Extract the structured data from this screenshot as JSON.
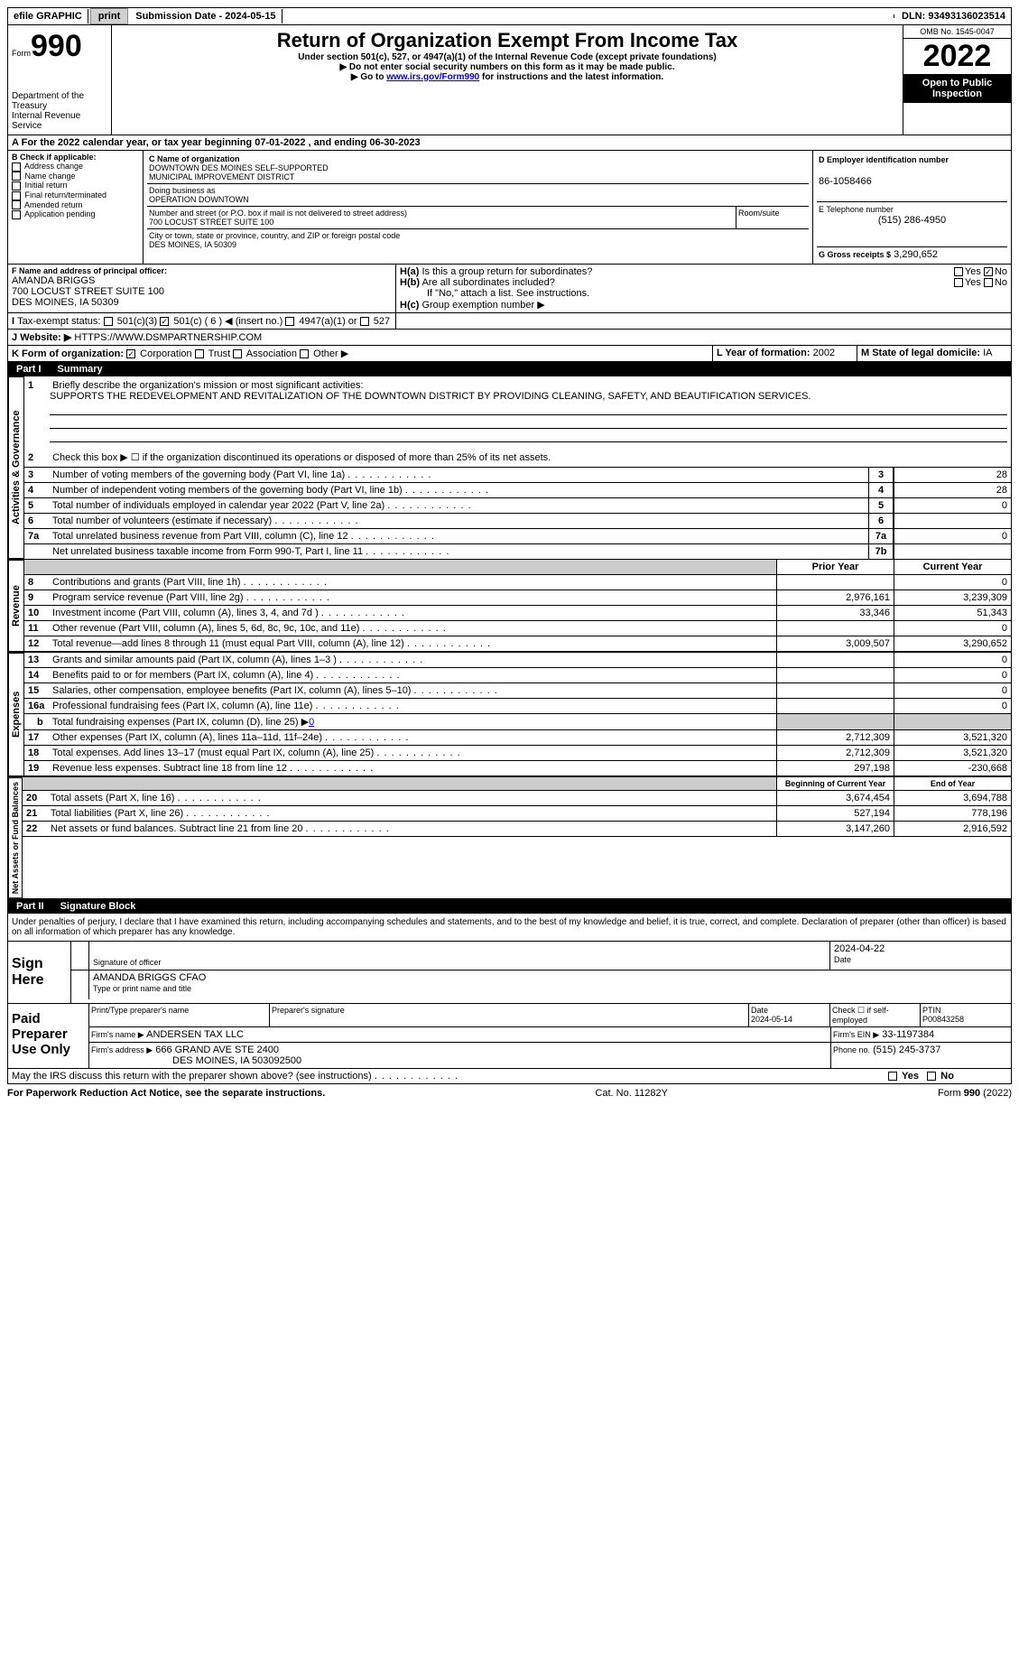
{
  "topbar": {
    "efile": "efile GRAPHIC",
    "print": "print",
    "subdate_label": "Submission Date - ",
    "subdate": "2024-05-15",
    "dln_label": "DLN: ",
    "dln": "93493136023514"
  },
  "header": {
    "form_prefix": "Form",
    "form_no": "990",
    "dept1": "Department of the Treasury",
    "dept2": "Internal Revenue Service",
    "title": "Return of Organization Exempt From Income Tax",
    "sub1": "Under section 501(c), 527, or 4947(a)(1) of the Internal Revenue Code (except private foundations)",
    "sub2": "▶ Do not enter social security numbers on this form as it may be made public.",
    "sub3a": "▶ Go to ",
    "sub3_link": "www.irs.gov/Form990",
    "sub3b": " for instructions and the latest information.",
    "omb": "OMB No. 1545-0047",
    "year": "2022",
    "inspect": "Open to Public Inspection"
  },
  "lineA": {
    "text_a": "For the 2022 calendar year, or tax year beginning ",
    "begin": "07-01-2022",
    "mid": " , and ending ",
    "end": "06-30-2023"
  },
  "boxB": {
    "label": "B Check if applicable:",
    "items": [
      "Address change",
      "Name change",
      "Initial return",
      "Final return/terminated",
      "Amended return",
      "Application pending"
    ]
  },
  "boxC": {
    "name_label": "C Name of organization",
    "name1": "DOWNTOWN DES MOINES SELF-SUPPORTED",
    "name2": "MUNICIPAL IMPROVEMENT DISTRICT",
    "dba_label": "Doing business as",
    "dba": "OPERATION DOWNTOWN",
    "street_label": "Number and street (or P.O. box if mail is not delivered to street address)",
    "street": "700 LOCUST STREET SUITE 100",
    "room_label": "Room/suite",
    "city_label": "City or town, state or province, country, and ZIP or foreign postal code",
    "city": "DES MOINES, IA  50309"
  },
  "boxD": {
    "label": "D Employer identification number",
    "ein": "86-1058466"
  },
  "boxE": {
    "label": "E Telephone number",
    "phone": "(515) 286-4950"
  },
  "boxG": {
    "label": "G Gross receipts $",
    "amount": "3,290,652"
  },
  "boxF": {
    "label": "F  Name and address of principal officer:",
    "name": "AMANDA BRIGGS",
    "addr1": "700 LOCUST STREET SUITE 100",
    "addr2": "DES MOINES, IA  50309"
  },
  "boxH": {
    "a": "Is this a group return for subordinates?",
    "b": "Are all subordinates included?",
    "note": "If \"No,\" attach a list. See instructions.",
    "c": "Group exemption number ▶",
    "yes": "Yes",
    "no": "No"
  },
  "lineI": {
    "label": "Tax-exempt status:",
    "c3": "501(c)(3)",
    "c": "501(c) ( 6 ) ◀ (insert no.)",
    "a1": "4947(a)(1) or",
    "s527": "527"
  },
  "lineJ": {
    "label": "Website: ▶",
    "url": "HTTPS://WWW.DSMPARTNERSHIP.COM"
  },
  "lineK": {
    "label": "K Form of organization:",
    "corp": "Corporation",
    "trust": "Trust",
    "assoc": "Association",
    "other": "Other ▶"
  },
  "lineL": {
    "label": "L Year of formation:",
    "year": "2002"
  },
  "lineM": {
    "label": "M State of legal domicile:",
    "state": "IA"
  },
  "part1": {
    "label": "Part I",
    "title": "Summary"
  },
  "summary": {
    "q1_label": "Briefly describe the organization's mission or most significant activities:",
    "q1_text": "SUPPORTS THE REDEVELOPMENT AND REVITALIZATION OF THE DOWNTOWN DISTRICT BY PROVIDING CLEANING, SAFETY, AND BEAUTIFICATION SERVICES.",
    "q2": "Check this box ▶ ☐ if the organization discontinued its operations or disposed of more than 25% of its net assets.",
    "lines": [
      {
        "n": "3",
        "d": "Number of voting members of the governing body (Part VI, line 1a)",
        "box": "3",
        "v": "28"
      },
      {
        "n": "4",
        "d": "Number of independent voting members of the governing body (Part VI, line 1b)",
        "box": "4",
        "v": "28"
      },
      {
        "n": "5",
        "d": "Total number of individuals employed in calendar year 2022 (Part V, line 2a)",
        "box": "5",
        "v": "0"
      },
      {
        "n": "6",
        "d": "Total number of volunteers (estimate if necessary)",
        "box": "6",
        "v": ""
      },
      {
        "n": "7a",
        "d": "Total unrelated business revenue from Part VIII, column (C), line 12",
        "box": "7a",
        "v": "0"
      },
      {
        "n": "",
        "d": "Net unrelated business taxable income from Form 990-T, Part I, line 11",
        "box": "7b",
        "v": ""
      }
    ]
  },
  "revenue": {
    "header_prior": "Prior Year",
    "header_current": "Current Year",
    "label": "Revenue",
    "rows": [
      {
        "n": "8",
        "d": "Contributions and grants (Part VIII, line 1h)",
        "p": "",
        "c": "0"
      },
      {
        "n": "9",
        "d": "Program service revenue (Part VIII, line 2g)",
        "p": "2,976,161",
        "c": "3,239,309"
      },
      {
        "n": "10",
        "d": "Investment income (Part VIII, column (A), lines 3, 4, and 7d )",
        "p": "33,346",
        "c": "51,343"
      },
      {
        "n": "11",
        "d": "Other revenue (Part VIII, column (A), lines 5, 6d, 8c, 9c, 10c, and 11e)",
        "p": "",
        "c": "0"
      },
      {
        "n": "12",
        "d": "Total revenue—add lines 8 through 11 (must equal Part VIII, column (A), line 12)",
        "p": "3,009,507",
        "c": "3,290,652"
      }
    ]
  },
  "expenses": {
    "label": "Expenses",
    "rows": [
      {
        "n": "13",
        "d": "Grants and similar amounts paid (Part IX, column (A), lines 1–3 )",
        "p": "",
        "c": "0"
      },
      {
        "n": "14",
        "d": "Benefits paid to or for members (Part IX, column (A), line 4)",
        "p": "",
        "c": "0"
      },
      {
        "n": "15",
        "d": "Salaries, other compensation, employee benefits (Part IX, column (A), lines 5–10)",
        "p": "",
        "c": "0"
      },
      {
        "n": "16a",
        "d": "Professional fundraising fees (Part IX, column (A), line 11e)",
        "p": "",
        "c": "0"
      }
    ],
    "line_b_a": "Total fundraising expenses (Part IX, column (D), line 25) ▶",
    "line_b_v": "0",
    "rows2": [
      {
        "n": "17",
        "d": "Other expenses (Part IX, column (A), lines 11a–11d, 11f–24e)",
        "p": "2,712,309",
        "c": "3,521,320"
      },
      {
        "n": "18",
        "d": "Total expenses. Add lines 13–17 (must equal Part IX, column (A), line 25)",
        "p": "2,712,309",
        "c": "3,521,320"
      },
      {
        "n": "19",
        "d": "Revenue less expenses. Subtract line 18 from line 12",
        "p": "297,198",
        "c": "-230,668"
      }
    ]
  },
  "netassets": {
    "label": "Net Assets or Fund Balances",
    "header_begin": "Beginning of Current Year",
    "header_end": "End of Year",
    "rows": [
      {
        "n": "20",
        "d": "Total assets (Part X, line 16)",
        "b": "3,674,454",
        "e": "3,694,788"
      },
      {
        "n": "21",
        "d": "Total liabilities (Part X, line 26)",
        "b": "527,194",
        "e": "778,196"
      },
      {
        "n": "22",
        "d": "Net assets or fund balances. Subtract line 21 from line 20",
        "b": "3,147,260",
        "e": "2,916,592"
      }
    ]
  },
  "part2": {
    "label": "Part II",
    "title": "Signature Block"
  },
  "sig": {
    "penalties": "Under penalties of perjury, I declare that I have examined this return, including accompanying schedules and statements, and to the best of my knowledge and belief, it is true, correct, and complete. Declaration of preparer (other than officer) is based on all information of which preparer has any knowledge.",
    "sign_here": "Sign Here",
    "sig_officer": "Signature of officer",
    "date_officer": "2024-04-22",
    "date_label": "Date",
    "typed_name": "AMANDA BRIGGS  CFAO",
    "typed_label": "Type or print name and title"
  },
  "preparer": {
    "label": "Paid Preparer Use Only",
    "print_label": "Print/Type preparer's name",
    "sig_label": "Preparer's signature",
    "date_label": "Date",
    "date": "2024-05-14",
    "check_label": "Check ☐ if self-employed",
    "ptin_label": "PTIN",
    "ptin": "P00843258",
    "firm_label": "Firm's name     ▶",
    "firm": "ANDERSEN TAX LLC",
    "ein_label": "Firm's EIN ▶",
    "ein": "33-1197384",
    "addr_label": "Firm's address ▶",
    "addr1": "666 GRAND AVE STE 2400",
    "addr2": "DES MOINES, IA  503092500",
    "phone_label": "Phone no.",
    "phone": "(515) 245-3737"
  },
  "bottom": {
    "discuss": "May the IRS discuss this return with the preparer shown above? (see instructions)",
    "yes": "Yes",
    "no": "No",
    "paperwork": "For Paperwork Reduction Act Notice, see the separate instructions.",
    "cat": "Cat. No. 11282Y",
    "form": "Form 990 (2022)"
  },
  "sections": {
    "activities": "Activities & Governance",
    "b_label": "b"
  }
}
